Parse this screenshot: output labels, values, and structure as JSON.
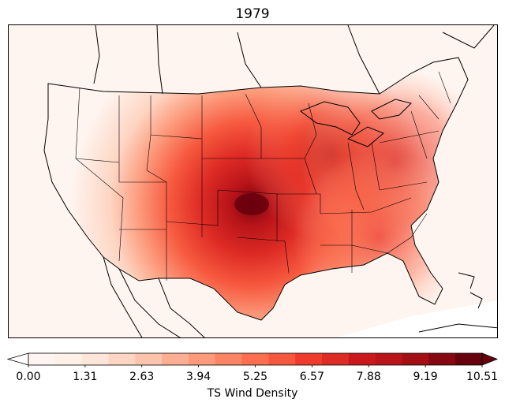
{
  "title": "1979",
  "colorbar": {
    "label": "TS Wind Density",
    "ticks": [
      "0.00",
      "1.31",
      "2.63",
      "3.94",
      "5.25",
      "6.57",
      "7.88",
      "9.19",
      "10.51"
    ],
    "colors": [
      "#fff5f0",
      "#fff0e8",
      "#fee5d9",
      "#fdd5c3",
      "#fcc4ad",
      "#fcae92",
      "#fc9a7b",
      "#fb8464",
      "#fb6e4f",
      "#f6583e",
      "#ee3b2c",
      "#de2b25",
      "#cb181d",
      "#b81419",
      "#a30f15",
      "#86070f",
      "#67000d"
    ],
    "over_color": "#67000d",
    "under_color": "#ffffff"
  }
}
